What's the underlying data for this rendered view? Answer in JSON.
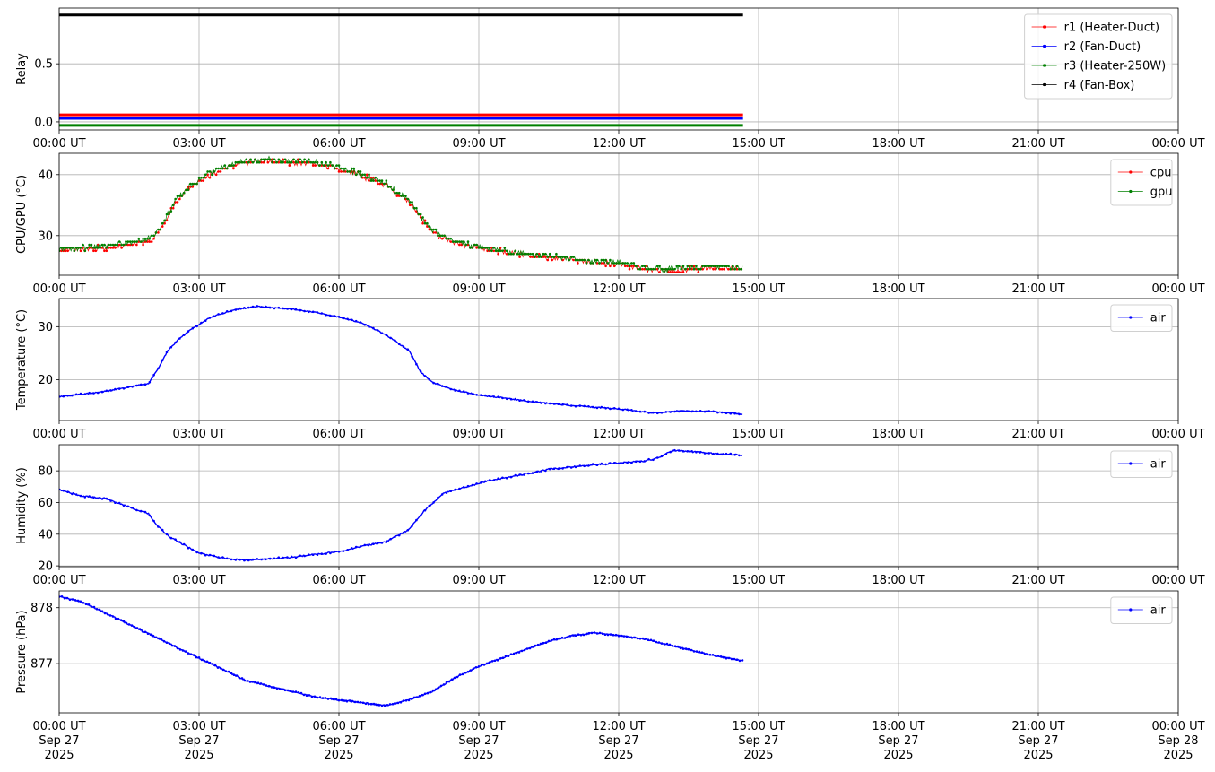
{
  "x_axis": {
    "range": [
      "2025-09-27T00:00",
      "2025-09-28T00:00"
    ],
    "ticks": [
      {
        "time": "2025-09-27T00:00",
        "label": "00:00 UT",
        "day": "Sep 27",
        "year": "2025"
      },
      {
        "time": "2025-09-27T03:00",
        "label": "03:00 UT",
        "day": "Sep 27",
        "year": "2025"
      },
      {
        "time": "2025-09-27T06:00",
        "label": "06:00 UT",
        "day": "Sep 27",
        "year": "2025"
      },
      {
        "time": "2025-09-27T09:00",
        "label": "09:00 UT",
        "day": "Sep 27",
        "year": "2025"
      },
      {
        "time": "2025-09-27T12:00",
        "label": "12:00 UT",
        "day": "Sep 27",
        "year": "2025"
      },
      {
        "time": "2025-09-27T15:00",
        "label": "15:00 UT",
        "day": "Sep 27",
        "year": "2025"
      },
      {
        "time": "2025-09-27T18:00",
        "label": "18:00 UT",
        "day": "Sep 27",
        "year": "2025"
      },
      {
        "time": "2025-09-27T21:00",
        "label": "21:00 UT",
        "day": "Sep 27",
        "year": "2025"
      },
      {
        "time": "2025-09-28T00:00",
        "label": "00:00 UT",
        "day": "Sep 28",
        "year": "2025"
      }
    ]
  },
  "chart_data": [
    {
      "type": "line",
      "ylabel": "Relay",
      "ylim": [
        -0.07,
        0.98
      ],
      "yticks": [
        {
          "value": 0.0,
          "label": "0.0"
        },
        {
          "value": 0.5,
          "label": "0.5"
        }
      ],
      "grid": true,
      "legend": "top-right",
      "series": [
        {
          "name": "r1 (Heater-Duct)",
          "color": "#ff0000",
          "x": [
            "2025-09-27T00:00",
            "2025-09-27T14:40"
          ],
          "values": [
            0.06,
            0.06
          ]
        },
        {
          "name": "r2 (Fan-Duct)",
          "color": "#0000ff",
          "x": [
            "2025-09-27T00:00",
            "2025-09-27T14:40"
          ],
          "values": [
            0.03,
            0.03
          ]
        },
        {
          "name": "r3 (Heater-250W)",
          "color": "#008000",
          "x": [
            "2025-09-27T00:00",
            "2025-09-27T14:40"
          ],
          "values": [
            -0.03,
            -0.03
          ]
        },
        {
          "name": "r4 (Fan-Box)",
          "color": "#000000",
          "x": [
            "2025-09-27T00:00",
            "2025-09-27T14:40"
          ],
          "values": [
            0.92,
            0.92
          ]
        }
      ]
    },
    {
      "type": "line",
      "ylabel": "CPU/GPU (°C)",
      "ylim": [
        23.5,
        43.5
      ],
      "yticks": [
        {
          "value": 30,
          "label": "30"
        },
        {
          "value": 40,
          "label": "40"
        }
      ],
      "grid": true,
      "legend": "top-right",
      "series": [
        {
          "name": "cpu",
          "color": "#ff0000",
          "x": [
            "2025-09-27T00:00",
            "2025-09-27T00:30",
            "2025-09-27T01:00",
            "2025-09-27T01:30",
            "2025-09-27T02:00",
            "2025-09-27T02:15",
            "2025-09-27T02:30",
            "2025-09-27T02:45",
            "2025-09-27T03:00",
            "2025-09-27T03:30",
            "2025-09-27T04:00",
            "2025-09-27T04:30",
            "2025-09-27T05:00",
            "2025-09-27T05:30",
            "2025-09-27T06:00",
            "2025-09-27T06:30",
            "2025-09-27T07:00",
            "2025-09-27T07:30",
            "2025-09-27T08:00",
            "2025-09-27T08:30",
            "2025-09-27T09:00",
            "2025-09-27T10:00",
            "2025-09-27T11:00",
            "2025-09-27T12:00",
            "2025-09-27T12:30",
            "2025-09-27T13:00",
            "2025-09-27T13:30",
            "2025-09-27T14:00",
            "2025-09-27T14:40"
          ],
          "values": [
            27.6,
            27.8,
            28.0,
            28.5,
            29.3,
            32.0,
            35.5,
            37.5,
            39.0,
            41.0,
            42.0,
            42.2,
            42.0,
            41.8,
            41.0,
            39.8,
            38.3,
            35.5,
            30.5,
            28.8,
            28.0,
            26.8,
            26.0,
            25.3,
            24.6,
            24.3,
            24.5,
            24.6,
            24.6
          ]
        },
        {
          "name": "gpu",
          "color": "#008000",
          "x": [
            "2025-09-27T00:00",
            "2025-09-27T00:30",
            "2025-09-27T01:00",
            "2025-09-27T01:30",
            "2025-09-27T02:00",
            "2025-09-27T02:15",
            "2025-09-27T02:30",
            "2025-09-27T02:45",
            "2025-09-27T03:00",
            "2025-09-27T03:30",
            "2025-09-27T04:00",
            "2025-09-27T04:30",
            "2025-09-27T05:00",
            "2025-09-27T05:30",
            "2025-09-27T06:00",
            "2025-09-27T06:30",
            "2025-09-27T07:00",
            "2025-09-27T07:30",
            "2025-09-27T08:00",
            "2025-09-27T08:30",
            "2025-09-27T09:00",
            "2025-09-27T10:00",
            "2025-09-27T11:00",
            "2025-09-27T12:00",
            "2025-09-27T12:30",
            "2025-09-27T13:00",
            "2025-09-27T13:30",
            "2025-09-27T14:00",
            "2025-09-27T14:40"
          ],
          "values": [
            27.8,
            28.0,
            28.3,
            28.8,
            29.6,
            32.3,
            35.8,
            37.8,
            39.3,
            41.3,
            42.3,
            42.5,
            42.2,
            42.0,
            41.2,
            40.0,
            38.5,
            35.8,
            30.8,
            29.0,
            28.2,
            27.0,
            26.2,
            25.5,
            24.8,
            24.5,
            24.8,
            24.9,
            24.8
          ]
        }
      ]
    },
    {
      "type": "line",
      "ylabel": "Temperature (°C)",
      "ylim": [
        12.3,
        35.3
      ],
      "yticks": [
        {
          "value": 20,
          "label": "20"
        },
        {
          "value": 30,
          "label": "30"
        }
      ],
      "grid": true,
      "legend": "top-right",
      "series": [
        {
          "name": "air",
          "color": "#0000ff",
          "x": [
            "2025-09-27T00:00",
            "2025-09-27T01:00",
            "2025-09-27T01:55",
            "2025-09-27T02:05",
            "2025-09-27T02:20",
            "2025-09-27T02:35",
            "2025-09-27T02:50",
            "2025-09-27T03:15",
            "2025-09-27T03:45",
            "2025-09-27T04:15",
            "2025-09-27T05:00",
            "2025-09-27T05:30",
            "2025-09-27T06:00",
            "2025-09-27T06:30",
            "2025-09-27T07:00",
            "2025-09-27T07:30",
            "2025-09-27T07:45",
            "2025-09-27T08:00",
            "2025-09-27T08:30",
            "2025-09-27T09:00",
            "2025-09-27T09:30",
            "2025-09-27T10:00",
            "2025-09-27T11:00",
            "2025-09-27T12:00",
            "2025-09-27T12:45",
            "2025-09-27T13:15",
            "2025-09-27T14:00",
            "2025-09-27T14:40"
          ],
          "values": [
            16.8,
            17.8,
            19.3,
            21.5,
            25.5,
            27.8,
            29.5,
            31.8,
            33.2,
            33.8,
            33.3,
            32.7,
            31.8,
            30.7,
            28.5,
            25.5,
            21.5,
            19.5,
            18.0,
            17.1,
            16.6,
            16.0,
            15.1,
            14.5,
            13.7,
            14.1,
            14.0,
            13.5
          ]
        }
      ]
    },
    {
      "type": "line",
      "ylabel": "Humidity (%)",
      "ylim": [
        19.5,
        96.5
      ],
      "yticks": [
        {
          "value": 20,
          "label": "20"
        },
        {
          "value": 40,
          "label": "40"
        },
        {
          "value": 60,
          "label": "60"
        },
        {
          "value": 80,
          "label": "80"
        }
      ],
      "grid": true,
      "legend": "top-right",
      "series": [
        {
          "name": "air",
          "color": "#0000ff",
          "x": [
            "2025-09-27T00:00",
            "2025-09-27T00:30",
            "2025-09-27T01:00",
            "2025-09-27T01:30",
            "2025-09-27T01:55",
            "2025-09-27T02:05",
            "2025-09-27T02:20",
            "2025-09-27T02:45",
            "2025-09-27T03:00",
            "2025-09-27T03:30",
            "2025-09-27T04:00",
            "2025-09-27T05:00",
            "2025-09-27T06:00",
            "2025-09-27T06:30",
            "2025-09-27T07:00",
            "2025-09-27T07:30",
            "2025-09-27T07:50",
            "2025-09-27T08:15",
            "2025-09-27T08:45",
            "2025-09-27T09:15",
            "2025-09-27T10:00",
            "2025-09-27T10:30",
            "2025-09-27T11:30",
            "2025-09-27T12:30",
            "2025-09-27T12:50",
            "2025-09-27T13:10",
            "2025-09-27T14:00",
            "2025-09-27T14:40"
          ],
          "values": [
            68,
            64,
            62.5,
            57,
            53,
            46,
            39,
            32,
            28,
            25,
            23.5,
            25.5,
            29,
            32.5,
            35,
            43,
            55,
            66,
            70,
            74,
            78,
            81,
            84,
            86,
            88,
            93,
            91,
            90
          ]
        }
      ]
    },
    {
      "type": "line",
      "ylabel": "Pressure (hPa)",
      "ylim": [
        876.12,
        878.3
      ],
      "yticks": [
        {
          "value": 877,
          "label": "877"
        },
        {
          "value": 878,
          "label": "878"
        }
      ],
      "grid": true,
      "legend": "top-right",
      "series": [
        {
          "name": "air",
          "color": "#0000ff",
          "x": [
            "2025-09-27T00:00",
            "2025-09-27T00:30",
            "2025-09-27T01:00",
            "2025-09-27T01:30",
            "2025-09-27T02:00",
            "2025-09-27T02:30",
            "2025-09-27T03:00",
            "2025-09-27T03:30",
            "2025-09-27T04:00",
            "2025-09-27T04:30",
            "2025-09-27T05:00",
            "2025-09-27T05:30",
            "2025-09-27T06:00",
            "2025-09-27T06:30",
            "2025-09-27T07:00",
            "2025-09-27T07:30",
            "2025-09-27T08:00",
            "2025-09-27T08:30",
            "2025-09-27T09:00",
            "2025-09-27T09:30",
            "2025-09-27T10:00",
            "2025-09-27T10:30",
            "2025-09-27T11:00",
            "2025-09-27T11:30",
            "2025-09-27T12:00",
            "2025-09-27T12:30",
            "2025-09-27T13:00",
            "2025-09-27T13:30",
            "2025-09-27T14:00",
            "2025-09-27T14:40"
          ],
          "values": [
            878.2,
            878.1,
            877.9,
            877.7,
            877.5,
            877.3,
            877.1,
            876.9,
            876.7,
            876.6,
            876.5,
            876.4,
            876.35,
            876.3,
            876.25,
            876.35,
            876.5,
            876.75,
            876.95,
            877.1,
            877.25,
            877.4,
            877.5,
            877.55,
            877.5,
            877.45,
            877.35,
            877.25,
            877.15,
            877.05
          ]
        }
      ]
    }
  ]
}
